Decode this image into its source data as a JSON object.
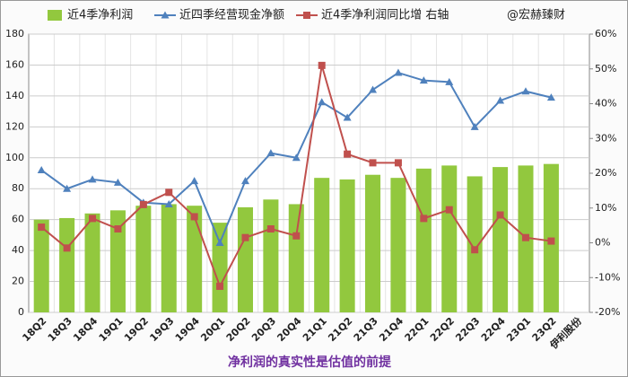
{
  "chart_data": {
    "type": "combo",
    "title": "净利润的真实性是估值的前提",
    "annotation": "@宏赫臻财",
    "categories": [
      "18Q2",
      "18Q3",
      "18Q4",
      "19Q1",
      "19Q2",
      "19Q3",
      "19Q4",
      "20Q1",
      "20Q2",
      "20Q3",
      "20Q4",
      "21Q1",
      "21Q2",
      "21Q3",
      "21Q4",
      "22Q1",
      "22Q2",
      "22Q3",
      "22Q4",
      "23Q1",
      "23Q2",
      "伊利股份"
    ],
    "series": [
      {
        "name": "近4季净利润",
        "type": "bar",
        "color": "#92c83e",
        "values": [
          60,
          61,
          64,
          66,
          69,
          70,
          69,
          58,
          68,
          73,
          70,
          87,
          86,
          89,
          87,
          93,
          95,
          88,
          94,
          95,
          96,
          null
        ]
      },
      {
        "name": "近四季经营现金净额",
        "type": "line",
        "marker": "triangle",
        "color": "#4f81bd",
        "values": [
          92,
          80,
          86,
          84,
          71,
          70,
          85,
          45,
          85,
          103,
          100,
          136,
          126,
          144,
          155,
          150,
          149,
          120,
          137,
          143,
          139,
          null
        ]
      },
      {
        "name": "近4季净利润同比增 右轴",
        "type": "line",
        "marker": "square",
        "color": "#c0504d",
        "axis": "y2",
        "values": [
          4.5,
          -1.5,
          7,
          4,
          11,
          14.5,
          7.5,
          -12.5,
          1.5,
          4,
          2,
          51,
          25.5,
          23,
          23,
          7,
          9.5,
          -2,
          8,
          1.5,
          0.5,
          null
        ]
      }
    ],
    "ylim": [
      0,
      180
    ],
    "yticks": [
      0,
      20,
      40,
      60,
      80,
      100,
      120,
      140,
      160,
      180
    ],
    "y2lim": [
      -20,
      60
    ],
    "y2ticks": [
      {
        "value": -20,
        "label": "-20%"
      },
      {
        "value": -10,
        "label": "-10%"
      },
      {
        "value": 0,
        "label": "0%"
      },
      {
        "value": 10,
        "label": "10%"
      },
      {
        "value": 20,
        "label": "20%"
      },
      {
        "value": 30,
        "label": "30%"
      },
      {
        "value": 40,
        "label": "40%"
      },
      {
        "value": 50,
        "label": "50%"
      },
      {
        "value": 60,
        "label": "60%"
      }
    ],
    "grid": true
  }
}
